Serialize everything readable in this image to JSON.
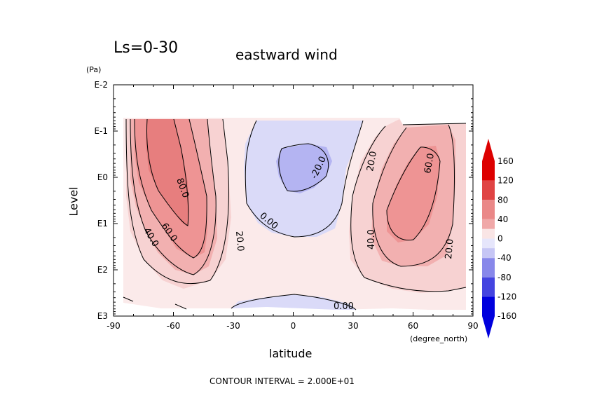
{
  "header": {
    "ls_label": "Ls=0-30",
    "title": "eastward wind"
  },
  "footer": {
    "contour_interval": "CONTOUR INTERVAL = 2.000E+01"
  },
  "chart_data": {
    "type": "contour",
    "title": "eastward wind",
    "xlabel": "latitude",
    "xunit": "(degree_north)",
    "ylabel": "Level",
    "yunit": "(Pa)",
    "xlim": [
      -90,
      90
    ],
    "ylim_log10_pa": [
      -2,
      3
    ],
    "y_scale": "log (decreasing upward)",
    "x_ticks": [
      "-90",
      "-60",
      "-30",
      "0",
      "30",
      "60",
      "90"
    ],
    "y_ticks": [
      "E-2",
      "E-1",
      "E0",
      "E1",
      "E2",
      "E3"
    ],
    "contour_interval": 20,
    "contour_labels": [
      "80.0",
      "60.0",
      "40.0",
      "20.0",
      "0.00",
      "-20.0",
      "20.0",
      "60.0",
      "40.0",
      "20.0",
      "0.00"
    ],
    "features": [
      {
        "name": "southern westerly jet",
        "max_approx": 80,
        "lat_approx": -60,
        "level": "E0"
      },
      {
        "name": "equatorial easterlies",
        "min_approx": -20,
        "lat_approx": 5,
        "level": "E-1"
      },
      {
        "name": "northern westerly jet",
        "max_approx": 60,
        "lat_approx": 60,
        "level": "E0"
      }
    ],
    "colorbar": {
      "ticks": [
        "160",
        "120",
        "80",
        "40",
        "0",
        "-40",
        "-80",
        "-120",
        "-160"
      ],
      "colors": {
        "pos": [
          "#f9e5e5",
          "#f5cccc",
          "#f0a8a8",
          "#ea8888",
          "#e66666",
          "#e04444",
          "#dd2222",
          "#dd0000"
        ],
        "neg": [
          "#e6e6fb",
          "#c6c6f5",
          "#a7a7f0",
          "#8888ea",
          "#6666e6",
          "#4444e0",
          "#2222dd",
          "#0000dd"
        ]
      }
    }
  }
}
